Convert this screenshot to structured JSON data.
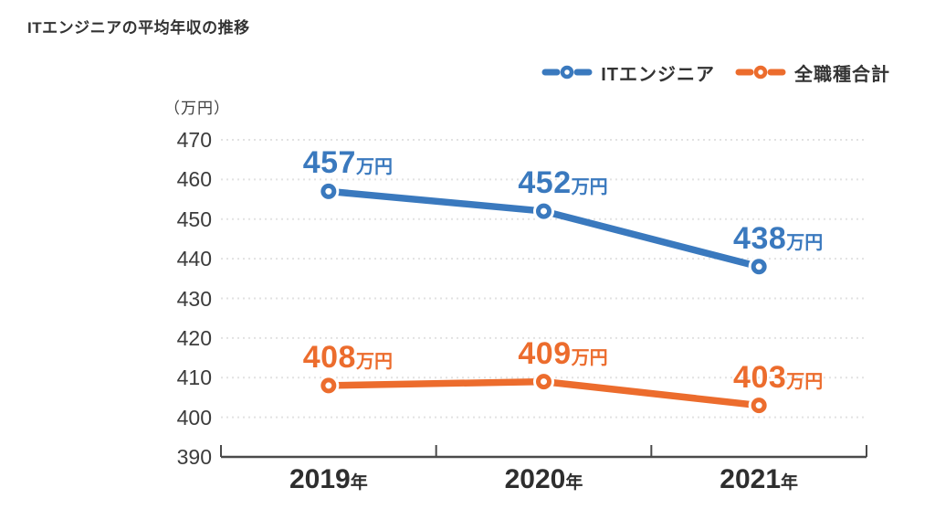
{
  "page": {
    "title": "ITエンジニアの平均年収の推移",
    "background": "#ffffff"
  },
  "chart_data": {
    "type": "line",
    "title": "ITエンジニアの平均年収の推移",
    "categories": [
      "2019年",
      "2020年",
      "2021年"
    ],
    "series": [
      {
        "name": "ITエンジニア",
        "color": "#3A79BE",
        "values": [
          457,
          452,
          438
        ],
        "point_labels": [
          "457万円",
          "452万円",
          "438万円"
        ]
      },
      {
        "name": "全職種合計",
        "color": "#EC6C2D",
        "values": [
          408,
          409,
          403
        ],
        "point_labels": [
          "408万円",
          "409万円",
          "403万円"
        ]
      }
    ],
    "xlabel": "",
    "ylabel": "（万円）",
    "ylim": [
      390,
      470
    ],
    "ytick_step": 10,
    "yticks": [
      470,
      460,
      450,
      440,
      430,
      420,
      410,
      400,
      390
    ],
    "grid": true,
    "gridline_style": "dotted",
    "legend_position": "top-right",
    "marker": "open-circle",
    "colors": {
      "grid": "#E2E2E2",
      "axis": "#4A4A4A",
      "tick_text": "#3C3C3C",
      "title_text": "#333333"
    }
  }
}
